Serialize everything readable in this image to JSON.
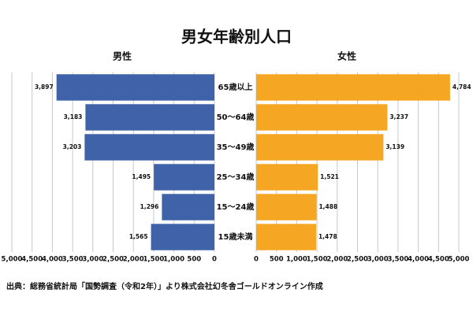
{
  "chart_data": {
    "type": "pyramid",
    "title": "男女年齢別人口",
    "categories": [
      "65歳以上",
      "50～64歳",
      "35～49歳",
      "25～34歳",
      "15～24歳",
      "15歳未満"
    ],
    "series": [
      {
        "name": "男性",
        "color": "#3f62a8",
        "values": [
          3897,
          3183,
          3203,
          1495,
          1296,
          1565
        ],
        "value_labels": [
          "3,897",
          "3,183",
          "3,203",
          "1,495",
          "1,296",
          "1,565"
        ]
      },
      {
        "name": "女性",
        "color": "#f5a623",
        "values": [
          4784,
          3237,
          3139,
          1521,
          1488,
          1478
        ],
        "value_labels": [
          "4,784",
          "3,237",
          "3,139",
          "1,521",
          "1,488",
          "1,478"
        ]
      }
    ],
    "xlim": [
      0,
      5000
    ],
    "xticks": [
      {
        "value": 0,
        "label": "0"
      },
      {
        "value": 500,
        "label": "500"
      },
      {
        "value": 1000,
        "label": "1,000"
      },
      {
        "value": 1500,
        "label": "1,500"
      },
      {
        "value": 2000,
        "label": "2,000"
      },
      {
        "value": 2500,
        "label": "2,500"
      },
      {
        "value": 3000,
        "label": "3,000"
      },
      {
        "value": 3500,
        "label": "3,500"
      },
      {
        "value": 4000,
        "label": "4,000"
      },
      {
        "value": 4500,
        "label": "4,500"
      },
      {
        "value": 5000,
        "label": "5,000"
      }
    ],
    "grid": true,
    "source": "出典：総務省統計局「国勢調査（令和2年）」より株式会社幻冬舎ゴールドオンライン作成"
  }
}
